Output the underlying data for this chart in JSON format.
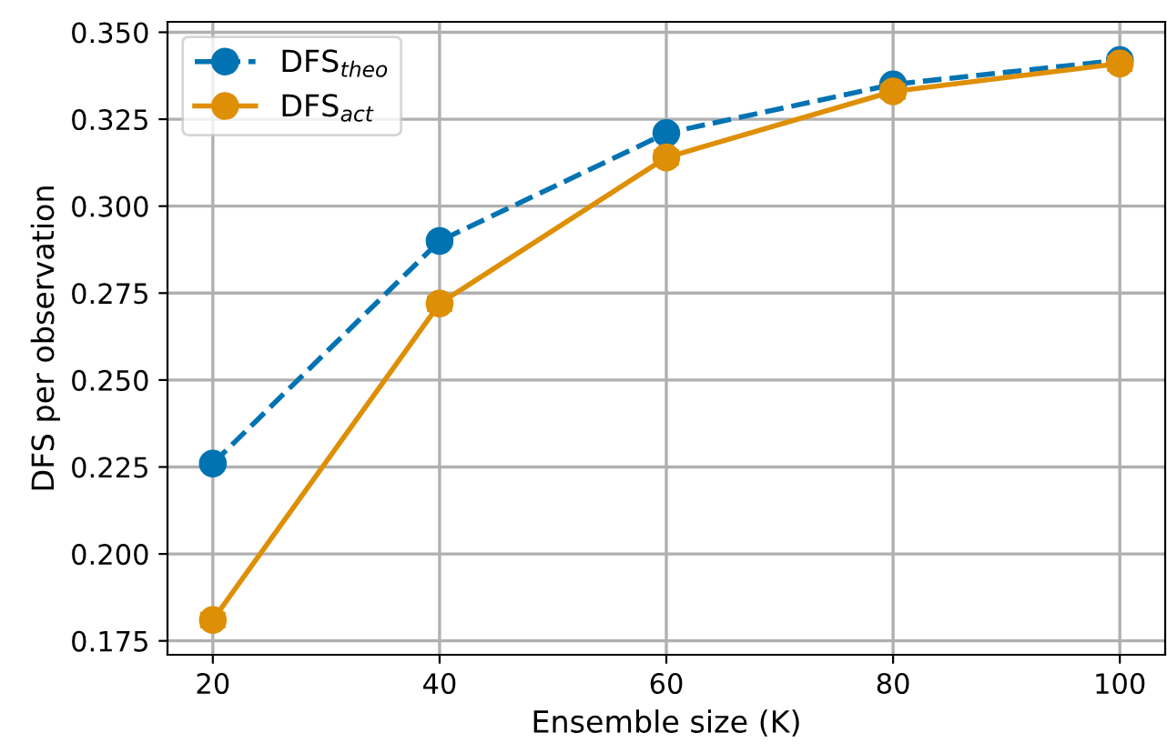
{
  "chart_data": {
    "type": "line",
    "xlabel": "Ensemble size (K)",
    "ylabel": "DFS per observation",
    "x": [
      20,
      40,
      60,
      80,
      100
    ],
    "series": [
      {
        "name": "DFS$_{theo}$",
        "color": "#0173b2",
        "values": [
          0.226,
          0.29,
          0.321,
          0.335,
          0.342
        ],
        "line_style": "dashed",
        "marker": "circle"
      },
      {
        "name": "DFS$_{act}$",
        "color": "#de8f05",
        "values": [
          0.181,
          0.272,
          0.314,
          0.333,
          0.341
        ],
        "errors": [
          0.002,
          0.002,
          0.002,
          0.002,
          0.002
        ],
        "line_style": "solid",
        "marker": "circle"
      }
    ],
    "xlim": [
      16,
      104
    ],
    "xticks": [
      20,
      40,
      60,
      80,
      100
    ],
    "ylim": [
      0.171,
      0.353
    ],
    "yticks": [
      {
        "value": 0.175,
        "label": "0.175"
      },
      {
        "value": 0.2,
        "label": "0.200"
      },
      {
        "value": 0.225,
        "label": "0.225"
      },
      {
        "value": 0.25,
        "label": "0.250"
      },
      {
        "value": 0.275,
        "label": "0.275"
      },
      {
        "value": 0.3,
        "label": "0.300"
      },
      {
        "value": 0.325,
        "label": "0.325"
      },
      {
        "value": 0.35,
        "label": "0.350"
      }
    ],
    "grid": true,
    "legend": "top left"
  }
}
